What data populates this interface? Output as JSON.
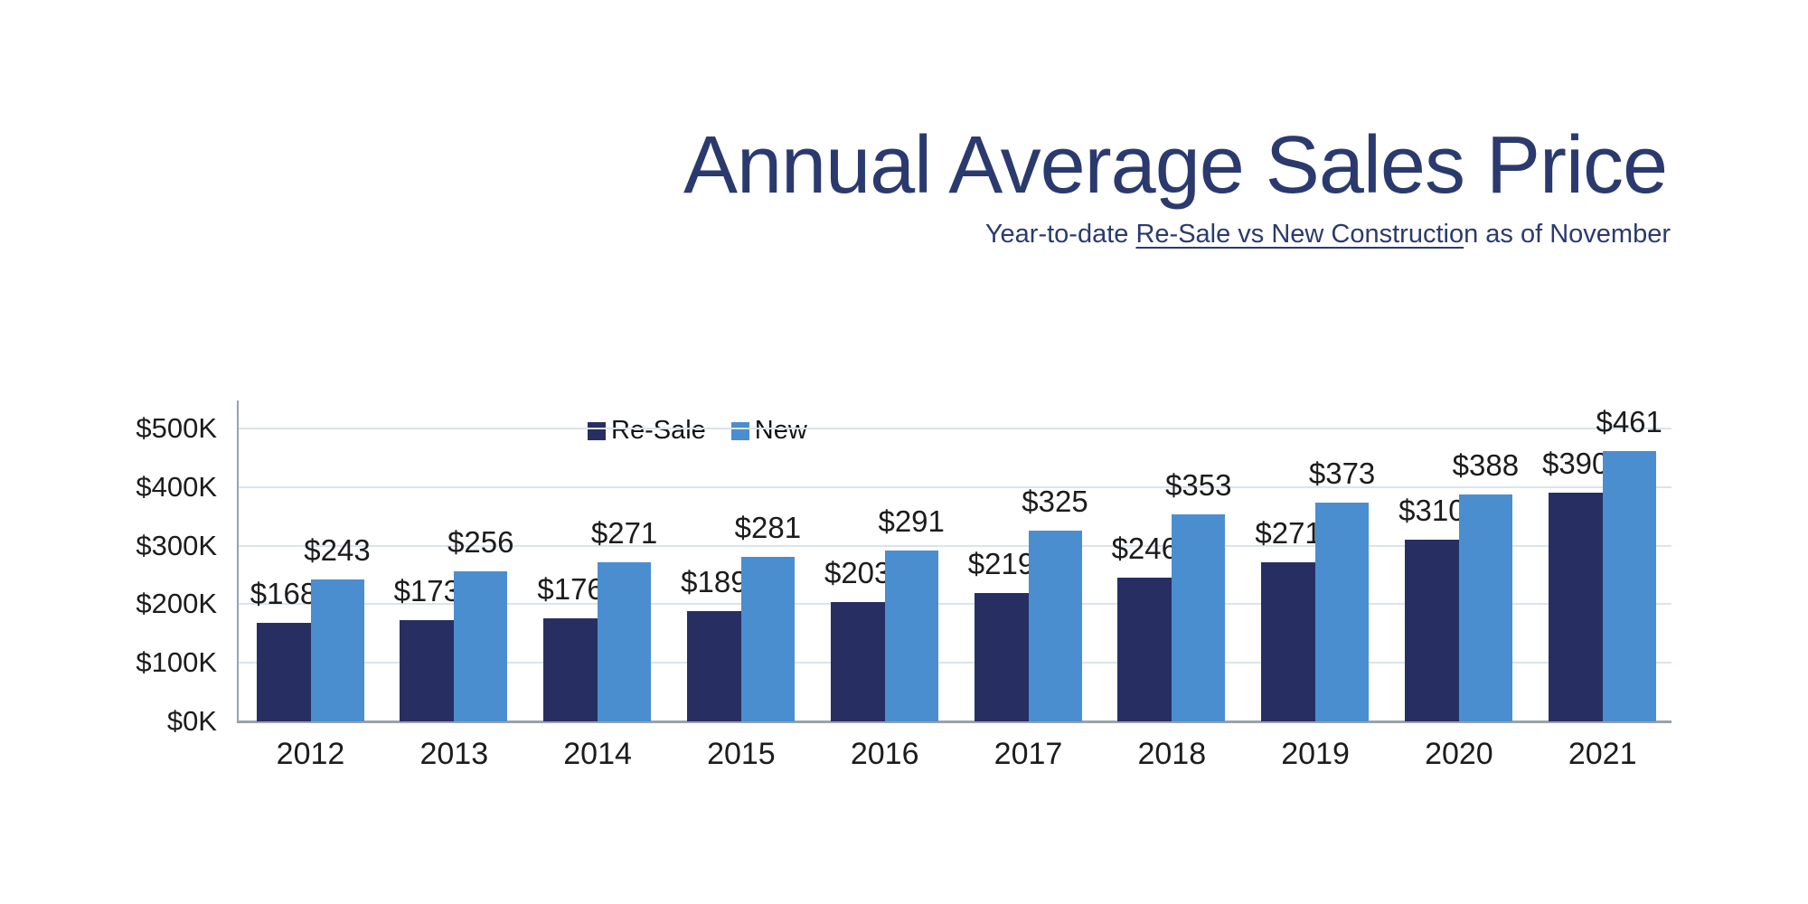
{
  "header": {
    "title": "Annual Average Sales Price",
    "subtitle_prefix": "Year-to-date ",
    "subtitle_underlined": "Re-Sale vs New Constructio",
    "subtitle_suffix": "n as of November"
  },
  "colors": {
    "title_text": "#2b3a6e",
    "resale_bar": "#272f62",
    "new_bar": "#4a8ecf",
    "gridline": "#dce3ed",
    "axis_line": "#9aa2ab",
    "label_text": "#1c1c1c"
  },
  "chart_data": {
    "type": "bar",
    "title": "Annual Average Sales Price",
    "subtitle": "Year-to-date Re-Sale vs New Construction as of November",
    "categories": [
      "2012",
      "2013",
      "2014",
      "2015",
      "2016",
      "2017",
      "2018",
      "2019",
      "2020",
      "2021"
    ],
    "series": [
      {
        "name": "Re-Sale",
        "color": "#272f62",
        "values": [
          168,
          173,
          176,
          189,
          203,
          219,
          246,
          271,
          310,
          390
        ]
      },
      {
        "name": "New",
        "color": "#4a8ecf",
        "values": [
          243,
          256,
          271,
          281,
          291,
          325,
          353,
          373,
          388,
          461
        ]
      }
    ],
    "value_label_prefix": "$",
    "value_labels": {
      "Re-Sale": [
        "$168",
        "$173",
        "$176",
        "$189",
        "$203",
        "$219",
        "$246",
        "$271",
        "$310",
        "$390"
      ],
      "New": [
        "$243",
        "$256",
        "$271",
        "$281",
        "$291",
        "$325",
        "$353",
        "$373",
        "$388",
        "$461"
      ]
    },
    "y_ticks": [
      {
        "value": 0,
        "label": "$0K"
      },
      {
        "value": 100,
        "label": "$100K"
      },
      {
        "value": 200,
        "label": "$200K"
      },
      {
        "value": 300,
        "label": "$300K"
      },
      {
        "value": 400,
        "label": "$400K"
      },
      {
        "value": 500,
        "label": "$500K"
      }
    ],
    "ylim": [
      0,
      500
    ],
    "grid": true,
    "legend_position": "inside-top-left"
  }
}
